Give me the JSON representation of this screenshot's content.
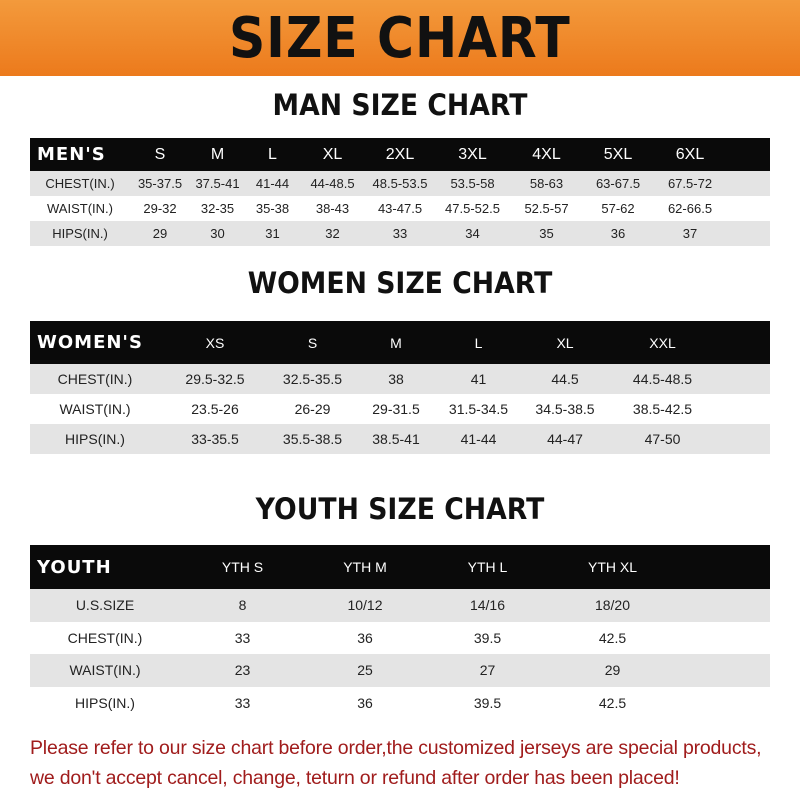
{
  "banner": "SIZE CHART",
  "men": {
    "title": "MAN SIZE CHART",
    "header": [
      "MEN'S",
      "S",
      "M",
      "L",
      "XL",
      "2XL",
      "3XL",
      "4XL",
      "5XL",
      "6XL"
    ],
    "rows": [
      [
        "CHEST(IN.)",
        "35-37.5",
        "37.5-41",
        "41-44",
        "44-48.5",
        "48.5-53.5",
        "53.5-58",
        "58-63",
        "63-67.5",
        "67.5-72"
      ],
      [
        "WAIST(IN.)",
        "29-32",
        "32-35",
        "35-38",
        "38-43",
        "43-47.5",
        "47.5-52.5",
        "52.5-57",
        "57-62",
        "62-66.5"
      ],
      [
        "HIPS(IN.)",
        "29",
        "30",
        "31",
        "32",
        "33",
        "34",
        "35",
        "36",
        "37"
      ]
    ]
  },
  "women": {
    "title": "WOMEN SIZE CHART",
    "header": [
      "WOMEN'S",
      "XS",
      "S",
      "M",
      "L",
      "XL",
      "XXL"
    ],
    "rows": [
      [
        "CHEST(IN.)",
        "29.5-32.5",
        "32.5-35.5",
        "38",
        "41",
        "44.5",
        "44.5-48.5"
      ],
      [
        "WAIST(IN.)",
        "23.5-26",
        "26-29",
        "29-31.5",
        "31.5-34.5",
        "34.5-38.5",
        "38.5-42.5"
      ],
      [
        "HIPS(IN.)",
        "33-35.5",
        "35.5-38.5",
        "38.5-41",
        "41-44",
        "44-47",
        "47-50"
      ]
    ]
  },
  "youth": {
    "title": "YOUTH SIZE CHART",
    "header": [
      "YOUTH",
      "YTH S",
      "YTH M",
      "YTH L",
      "YTH XL"
    ],
    "rows": [
      [
        "U.S.SIZE",
        "8",
        "10/12",
        "14/16",
        "18/20"
      ],
      [
        "CHEST(IN.)",
        "33",
        "36",
        "39.5",
        "42.5"
      ],
      [
        "WAIST(IN.)",
        "23",
        "25",
        "27",
        "29"
      ],
      [
        "HIPS(IN.)",
        "33",
        "36",
        "39.5",
        "42.5"
      ]
    ]
  },
  "note": [
    "Please refer to our size chart before order,the customized jerseys are special products,",
    "we don't accept cancel, change, teturn or refund after order has been placed!"
  ]
}
